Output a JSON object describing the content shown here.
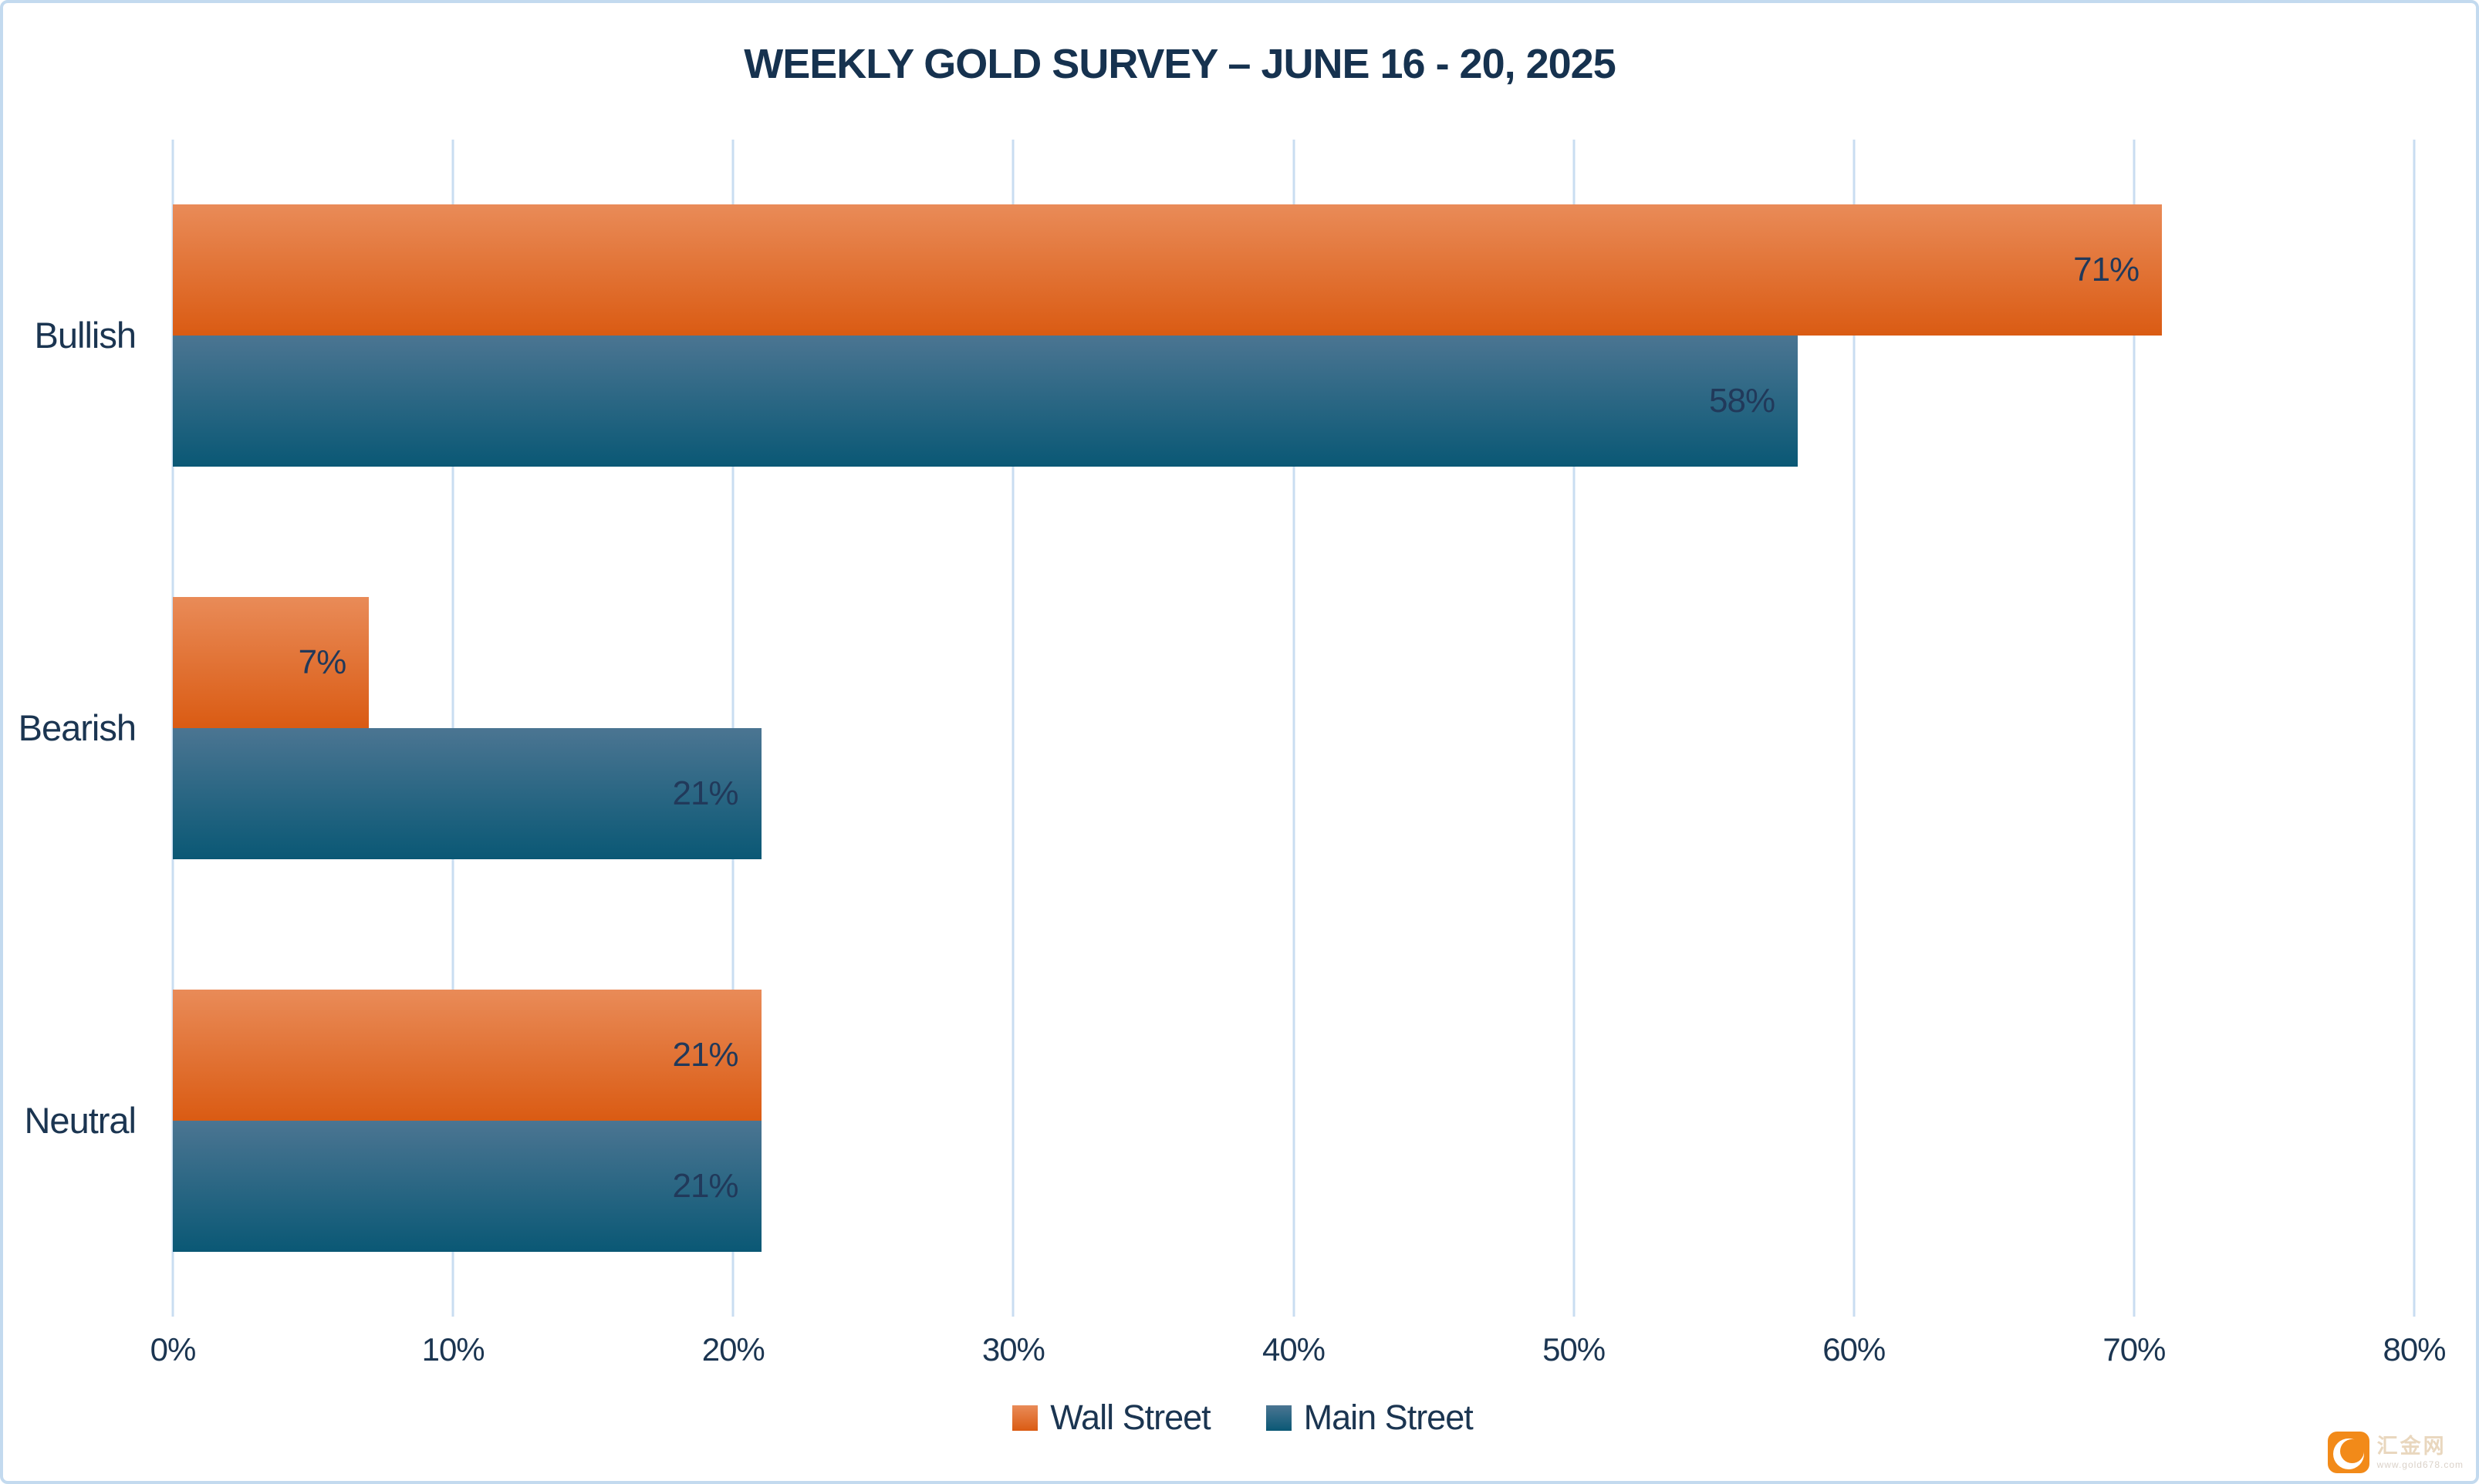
{
  "frame": {
    "background": "#FFFFFF",
    "border_color": "#C3DAEF"
  },
  "chart_data": {
    "type": "bar",
    "orientation": "horizontal",
    "title": "WEEKLY GOLD SURVEY – JUNE 16 - 20, 2025",
    "title_color": "#16324F",
    "categories": [
      "Bullish",
      "Bearish",
      "Neutral"
    ],
    "series": [
      {
        "name": "Wall Street",
        "values": [
          71,
          7,
          21
        ],
        "color_top": "#E98B58",
        "color_bottom": "#DA5B13"
      },
      {
        "name": "Main Street",
        "values": [
          58,
          21,
          21
        ],
        "color_top": "#4B7592",
        "color_bottom": "#0A5875"
      }
    ],
    "value_suffix": "%",
    "data_labels": {
      "wall_street": [
        "71%",
        "7%",
        "21%"
      ],
      "main_street": [
        "58%",
        "21%",
        "21%"
      ]
    },
    "x_axis": {
      "min": 0,
      "max": 80,
      "tick_step": 10,
      "tick_labels": [
        "0%",
        "10%",
        "20%",
        "30%",
        "40%",
        "50%",
        "60%",
        "70%",
        "80%"
      ]
    },
    "grid": true,
    "gridline_color": "#C9DDF1",
    "label_color": "#1B3551",
    "legend_position": "bottom"
  },
  "watermark": {
    "site_name": "汇金网",
    "site_url": "www.gold678.com",
    "icon": "huijin-swirl-icon",
    "icon_color": "#F28A19",
    "text_color": "#E9D7BE",
    "url_color": "#DBD2C9"
  }
}
